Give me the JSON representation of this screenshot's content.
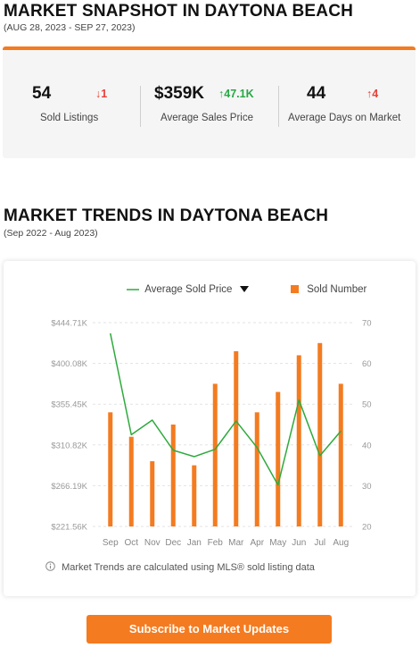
{
  "snapshot": {
    "title": "MARKET SNAPSHOT IN DAYTONA BEACH",
    "date_range": "(AUG 28, 2023 - SEP 27, 2023)",
    "stats": [
      {
        "value": "54",
        "change": "↓1",
        "label": "Sold Listings",
        "change_color": "#e8403a"
      },
      {
        "value": "$359K",
        "change": "↑47.1K",
        "label": "Average Sales Price",
        "change_color": "#27a844"
      },
      {
        "value": "44",
        "change": "↑4",
        "label": "Average Days on Market",
        "change_color": "#e8403a"
      }
    ]
  },
  "trends": {
    "title": "MARKET TRENDS IN DAYTONA BEACH",
    "date_range": "(Sep 2022 - Aug 2023)",
    "legend_line": "Average Sold Price",
    "legend_bar": "Sold Number",
    "note": "Market Trends are calculated using MLS® sold listing data",
    "note_icon": "info-icon"
  },
  "colors": {
    "accent": "#f47b20",
    "line": "#2eaa3c",
    "up_red": "#e8403a",
    "up_green": "#27a844"
  },
  "cta": {
    "label": "Subscribe to Market Updates"
  },
  "chart_data": {
    "type": "bar",
    "categories": [
      "Sep",
      "Oct",
      "Nov",
      "Dec",
      "Jan",
      "Feb",
      "Mar",
      "Apr",
      "May",
      "Jun",
      "Jul",
      "Aug"
    ],
    "series": [
      {
        "name": "Sold Number",
        "type": "bar",
        "axis": "right",
        "values": [
          48,
          42,
          36,
          45,
          35,
          55,
          63,
          48,
          53,
          62,
          65,
          55
        ]
      },
      {
        "name": "Average Sold Price",
        "type": "line",
        "axis": "left",
        "values": [
          433000,
          322000,
          338000,
          305000,
          298000,
          306000,
          337000,
          308000,
          267000,
          360000,
          299000,
          326000
        ]
      }
    ],
    "y_left": {
      "ticks": [
        "$444.71K",
        "$400.08K",
        "$355.45K",
        "$310.82K",
        "$266.19K",
        "$221.56K"
      ],
      "range": [
        221560,
        444710
      ]
    },
    "y_right": {
      "ticks": [
        "70",
        "60",
        "50",
        "40",
        "30",
        "20"
      ],
      "range": [
        20,
        70
      ]
    },
    "grid": "horizontal-dashed",
    "legend_position": "top-right"
  }
}
